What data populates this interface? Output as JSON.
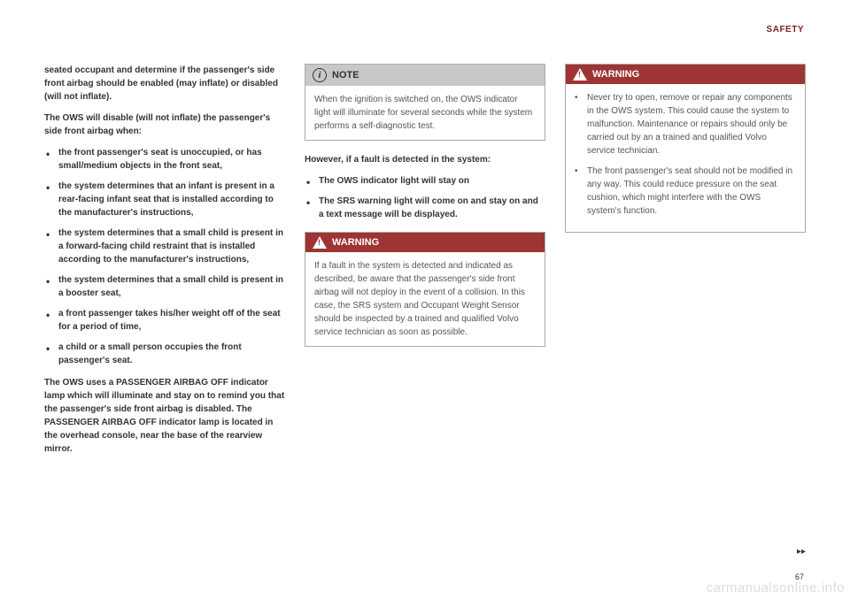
{
  "header": {
    "label": "SAFETY"
  },
  "col1": {
    "intro": "seated occupant and determine if the passenger's side front airbag should be enabled (may inflate) or disabled (will not inflate).",
    "disable_intro": "The OWS will disable (will not inflate) the passenger's side front airbag when:",
    "bullets": [
      "the front passenger's seat is unoccupied, or has small/medium objects in the front seat,",
      "the system determines that an infant is present in a rear-facing infant seat that is installed according to the manufacturer's instructions,",
      "the system determines that a small child is present in a forward-facing child restraint that is installed according to the manufacturer's instructions,",
      "the system determines that a small child is present in a booster seat,",
      "a front passenger takes his/her weight off of the seat for a period of time,",
      "a child or a small person occupies the front passenger's seat."
    ],
    "outro": "The OWS uses a PASSENGER AIRBAG OFF indicator lamp which will illuminate and stay on to remind you that the passenger's side front airbag is disabled. The PASSENGER AIRBAG OFF indicator lamp is located in the overhead console, near the base of the rearview mirror."
  },
  "col2": {
    "note": {
      "title": "NOTE",
      "body": "When the ignition is switched on, the OWS indicator light will illuminate for several seconds while the system performs a self-diagnostic test."
    },
    "fault_intro": "However, if a fault is detected in the system:",
    "fault_bullets": [
      "The OWS indicator light will stay on",
      "The SRS warning light will come on and stay on and a text message will be displayed."
    ],
    "warning": {
      "title": "WARNING",
      "body": "If a fault in the system is detected and indicated as described, be aware that the passenger's side front airbag will not deploy in the event of a collision. In this case, the SRS system and Occupant Weight Sensor should be inspected by a trained and qualified Volvo service technician as soon as possible."
    }
  },
  "col3": {
    "warning": {
      "title": "WARNING",
      "bullets": [
        "Never try to open, remove or repair any components in the OWS system. This could cause the system to malfunction. Maintenance or repairs should only be carried out by an a trained and qualified Volvo service technician.",
        "The front passenger's seat should not be modified in any way. This could reduce pressure on the seat cushion, which might interfere with the OWS system's function."
      ]
    }
  },
  "footer": {
    "page": "67",
    "continue": "▸▸",
    "watermark": "carmanualsonline.info"
  }
}
